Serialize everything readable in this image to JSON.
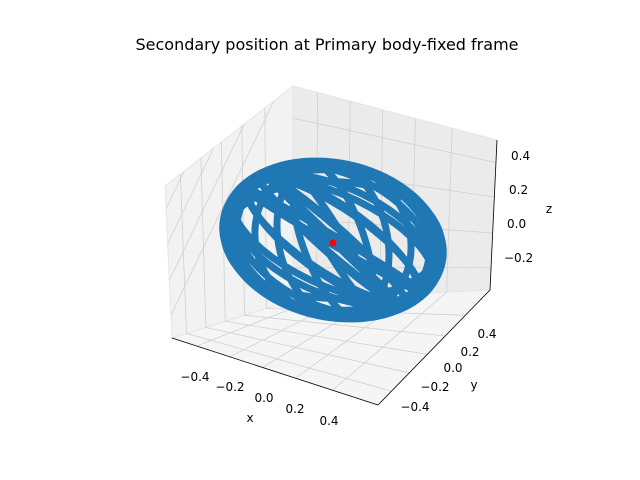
{
  "chart_data": {
    "type": "scatter",
    "projection": "3d",
    "title": "Secondary position at Primary body-fixed frame",
    "xlabel": "x",
    "ylabel": "y",
    "zlabel": "z",
    "xlim": [
      -0.58,
      0.58
    ],
    "ylim": [
      -0.58,
      0.58
    ],
    "zlim": [
      -0.4,
      0.5
    ],
    "x_ticks": [
      "−0.4",
      "−0.2",
      "0.0",
      "0.2",
      "0.4"
    ],
    "y_ticks": [
      "−0.4",
      "−0.2",
      "0.0",
      "0.2",
      "0.4"
    ],
    "z_ticks": [
      "−0.2",
      "0.0",
      "0.2",
      "0.4"
    ],
    "grid": true,
    "series": [
      {
        "description": "secondary trajectory",
        "color": "#1f77b4",
        "shape": "ellipsoid-shell",
        "radius_x": 0.5,
        "radius_y": 0.5,
        "radius_z": 0.35
      },
      {
        "description": "primary body origin",
        "color": "#ff0000",
        "x": [
          0.0
        ],
        "y": [
          0.0
        ],
        "z": [
          0.0
        ]
      }
    ]
  }
}
